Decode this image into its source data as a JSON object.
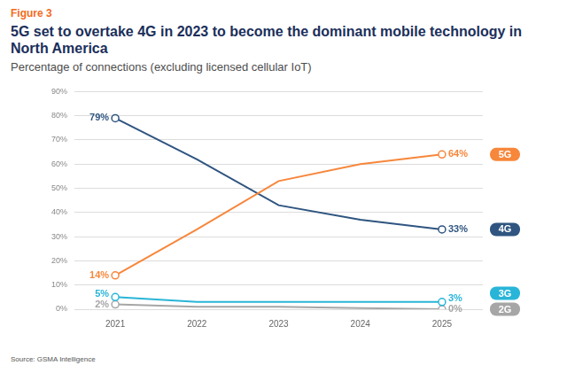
{
  "chart_data": {
    "type": "line",
    "label": "Figure 3",
    "title": "5G set to overtake 4G in 2023 to become the dominant mobile technology in North America",
    "subtitle": "Percentage of connections (excluding licensed cellular IoT)",
    "source": "Source: GSMA Intelligence",
    "categories": [
      "2021",
      "2022",
      "2023",
      "2024",
      "2025"
    ],
    "series": [
      {
        "name": "5G",
        "color": "#f7873b",
        "values": [
          14,
          33,
          53,
          60,
          64
        ],
        "value_labels": [
          "14%",
          null,
          null,
          null,
          "64%"
        ]
      },
      {
        "name": "4G",
        "color": "#2f5580",
        "values": [
          79,
          62,
          43,
          37,
          33
        ],
        "value_labels": [
          "79%",
          null,
          null,
          null,
          "33%"
        ]
      },
      {
        "name": "3G",
        "color": "#29b5d8",
        "values": [
          5,
          3,
          3,
          3,
          3
        ],
        "value_labels": [
          "5%",
          null,
          null,
          null,
          "3%"
        ]
      },
      {
        "name": "2G",
        "color": "#a6a6a6",
        "values": [
          2,
          1,
          1,
          0.5,
          0
        ],
        "value_labels": [
          "2%",
          null,
          null,
          null,
          "0%"
        ]
      }
    ],
    "ylim": [
      0,
      90
    ],
    "yticks": [
      {
        "value": 0,
        "label": "0%"
      },
      {
        "value": 10,
        "label": "10%"
      },
      {
        "value": 20,
        "label": "20%"
      },
      {
        "value": 30,
        "label": "30%"
      },
      {
        "value": 40,
        "label": "40%"
      },
      {
        "value": 50,
        "label": "50%"
      },
      {
        "value": 60,
        "label": "60%"
      },
      {
        "value": 70,
        "label": "70%"
      },
      {
        "value": 80,
        "label": "80%"
      },
      {
        "value": 90,
        "label": "90%"
      }
    ],
    "grid": true,
    "legend": "right",
    "data_labels": true,
    "marker": "circle",
    "line_style": "solid"
  }
}
